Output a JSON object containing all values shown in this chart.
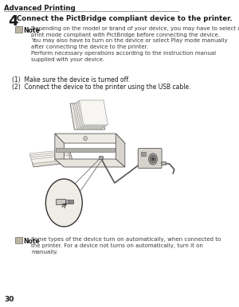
{
  "page_header": "Advanced Printing",
  "step_number": "4",
  "step_title": "Connect the PictBridge compliant device to the printer.",
  "note1_text": "Depending on the model or brand of your device, you may have to select a\nprint mode compliant with PictBridge before connecting the device.\nYou may also have to turn on the device or select Play mode manually\nafter connecting the device to the printer.\nPerform necessary operations according to the instruction manual\nsupplied with your device.",
  "item1": "(1)  Make sure the device is turned off.",
  "item2": "(2)  Connect the device to the printer using the USB cable.",
  "note2_text": "Some types of the device turn on automatically, when connected to\nthe printer. For a device not turns on automatically, turn it on\nmanually.",
  "page_number": "30",
  "bg_color": "#ffffff",
  "text_color": "#1a1a1a",
  "gray_text": "#3a3a3a",
  "line_color": "#888888",
  "printer_fill": "#f0eeea",
  "printer_edge": "#555555"
}
